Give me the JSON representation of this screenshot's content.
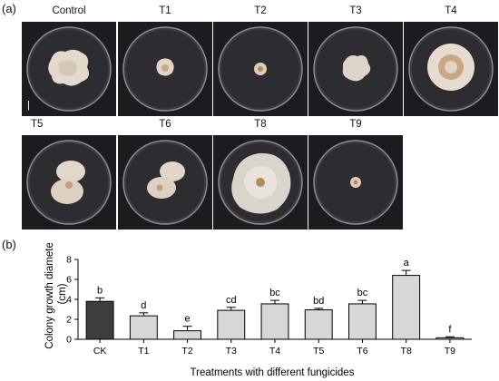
{
  "panel_a_label": "(a)",
  "panel_b_label": "(b)",
  "plates": [
    {
      "label": "Control",
      "colony": "irregular-large"
    },
    {
      "label": "T1",
      "colony": "small"
    },
    {
      "label": "T2",
      "colony": "tiny"
    },
    {
      "label": "T3",
      "colony": "irregular-medium"
    },
    {
      "label": "T4",
      "colony": "large-ring"
    },
    {
      "label": "T5",
      "colony": "double-lobe"
    },
    {
      "label": "T6",
      "colony": "double-lobe"
    },
    {
      "label": "T8",
      "colony": "spreading-large"
    },
    {
      "label": "T9",
      "colony": "tiny"
    }
  ],
  "scale_bar_glyph": "|",
  "chart_data": {
    "type": "bar",
    "categories": [
      "CK",
      "T1",
      "T2",
      "T3",
      "T4",
      "T5",
      "T6",
      "T8",
      "T9"
    ],
    "values": [
      3.8,
      2.35,
      0.85,
      2.9,
      3.55,
      2.95,
      3.55,
      6.4,
      0.15
    ],
    "errors": [
      0.35,
      0.3,
      0.45,
      0.3,
      0.35,
      0.15,
      0.35,
      0.5,
      0.1
    ],
    "significance": [
      "b",
      "d",
      "e",
      "cd",
      "bc",
      "bd",
      "bc",
      "a",
      "f"
    ],
    "bar_colors": [
      "#3d3d3d",
      "#d7d7d7",
      "#d7d7d7",
      "#d7d7d7",
      "#d7d7d7",
      "#d7d7d7",
      "#d7d7d7",
      "#d7d7d7",
      "#d7d7d7"
    ],
    "ylabel_line1": "Colony growth diameter",
    "ylabel_line2": "(cm)",
    "xlabel": "Treatments with different fungicides",
    "ylim": [
      0,
      8
    ],
    "yticks": [
      0,
      2,
      4,
      6,
      8
    ],
    "grid": false
  }
}
